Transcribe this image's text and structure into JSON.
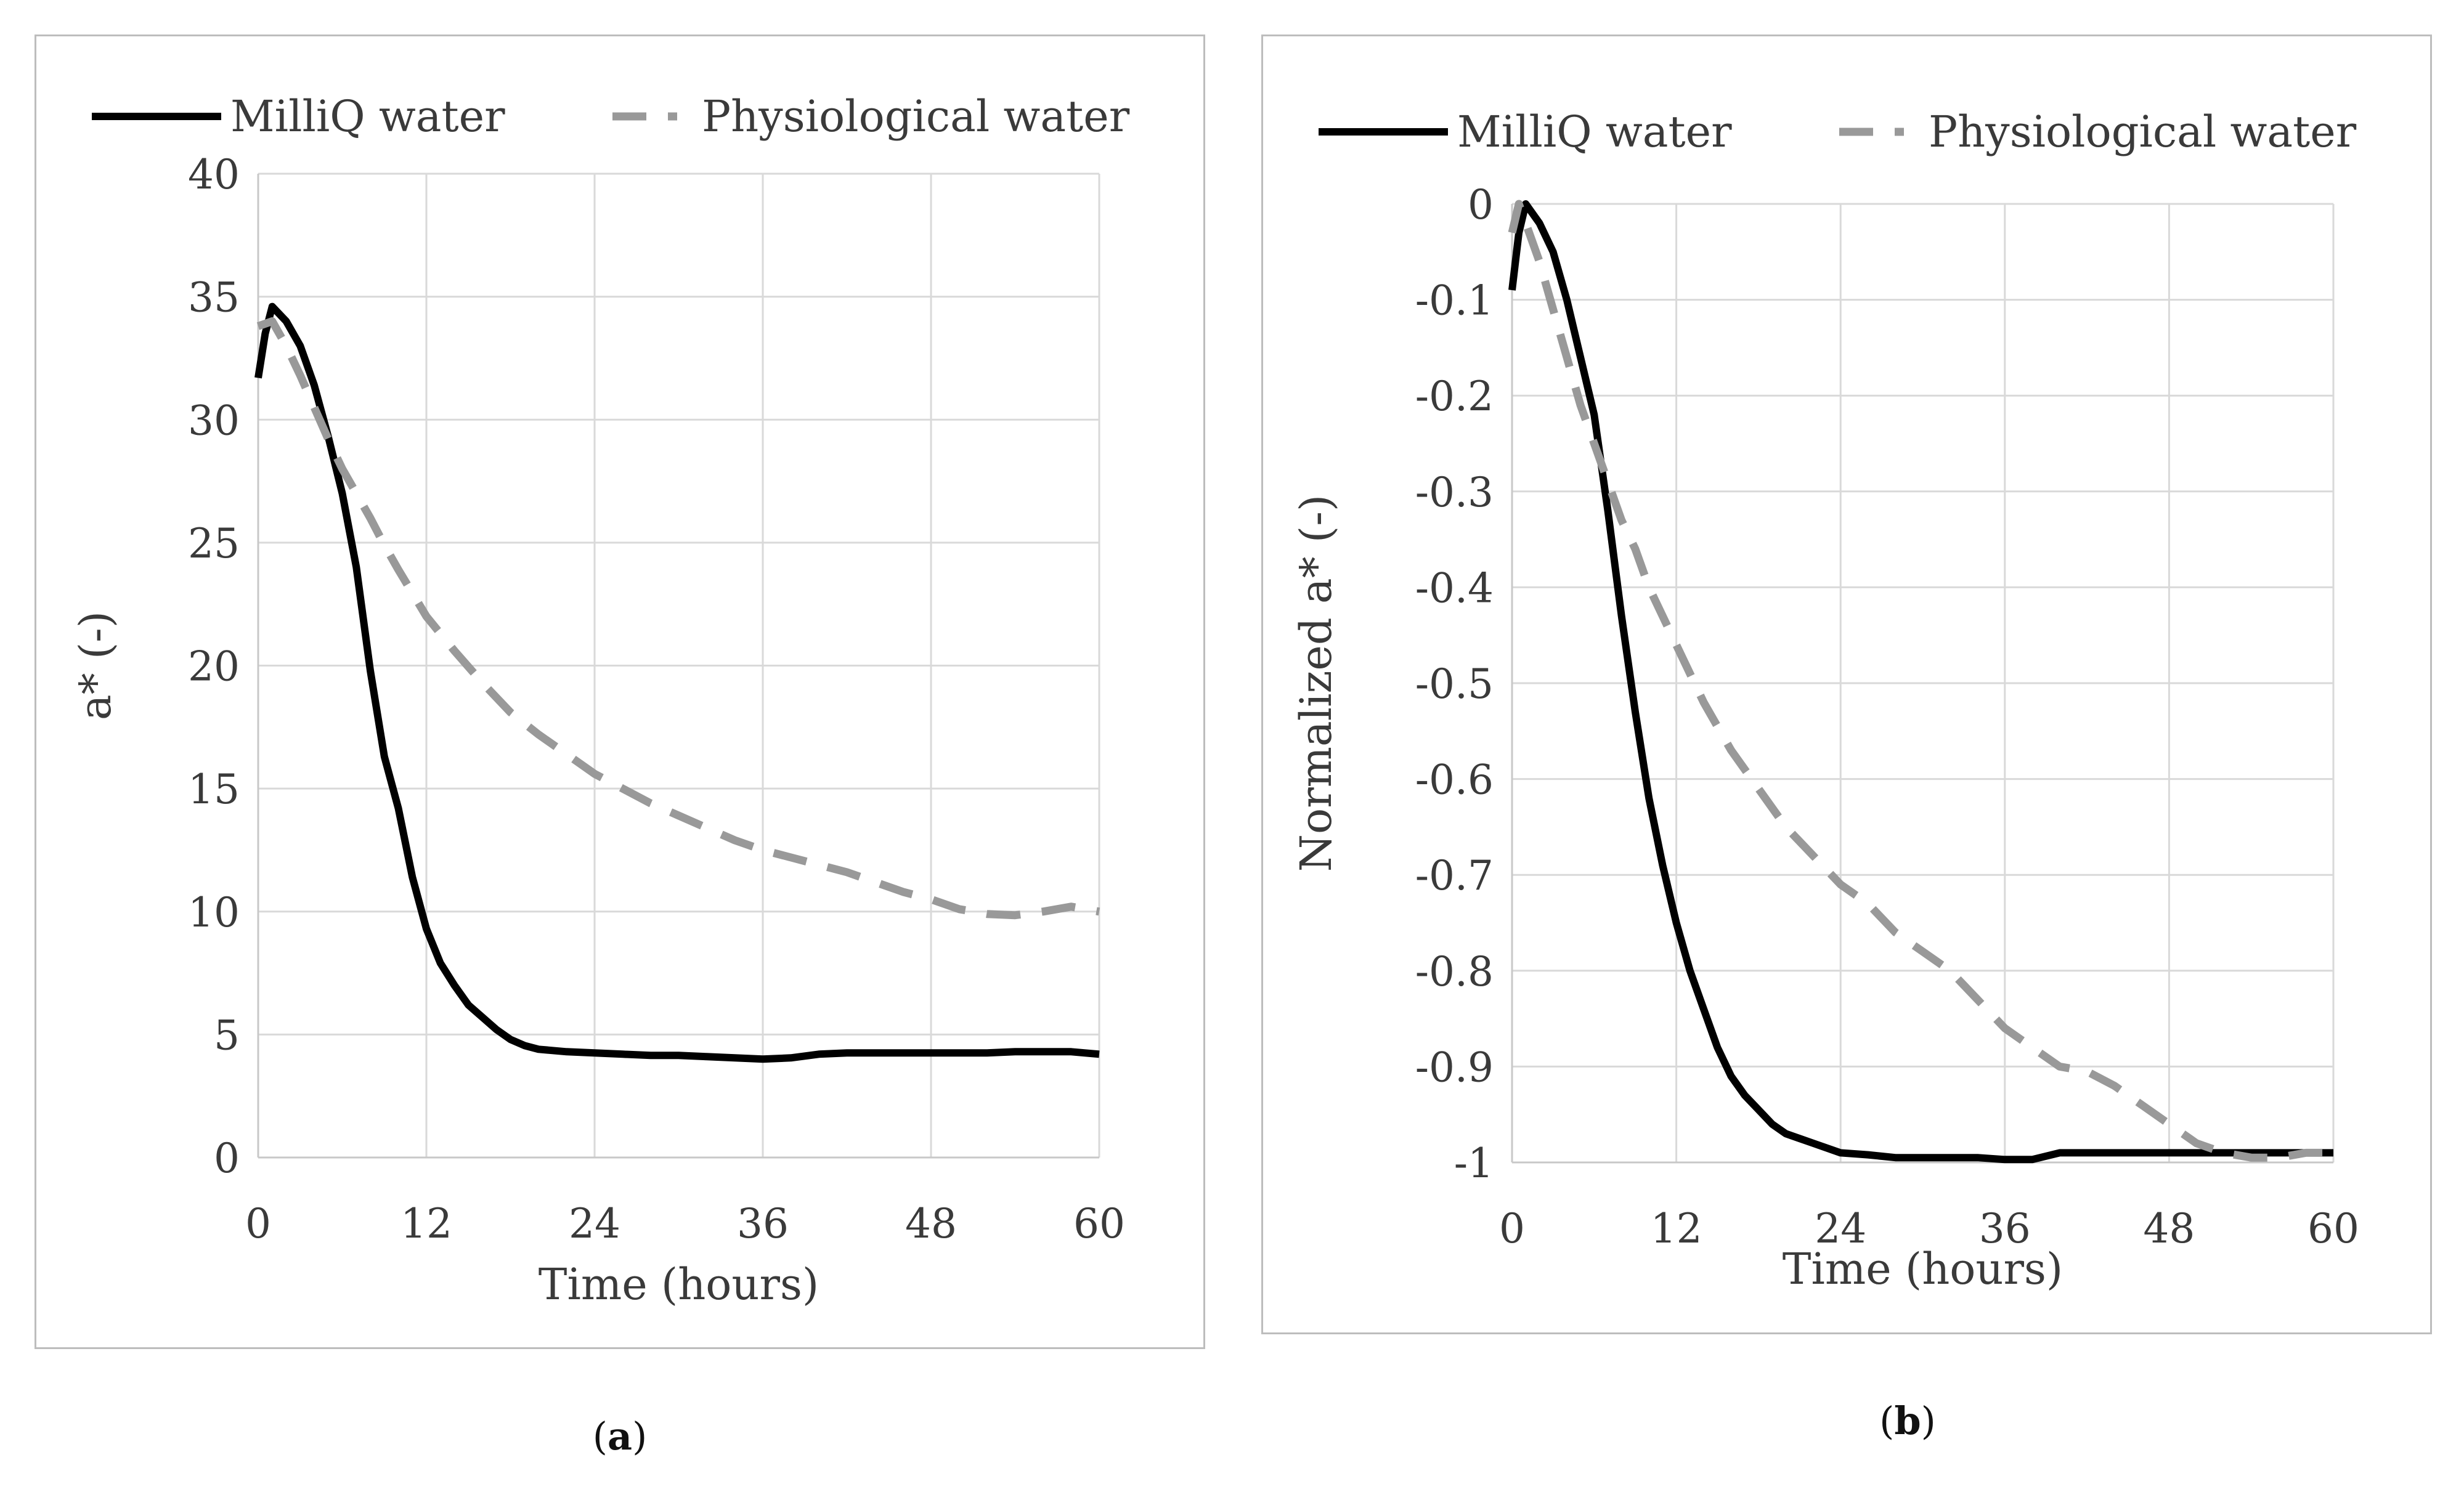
{
  "chart_data": [
    {
      "type": "line",
      "panel": "a",
      "xlabel": "Time (hours)",
      "ylabel": "a* (-)",
      "xlim": [
        0,
        60
      ],
      "ylim": [
        0,
        40
      ],
      "xticks": [
        0,
        12,
        24,
        36,
        48,
        60
      ],
      "yticks": [
        0,
        5,
        10,
        15,
        20,
        25,
        30,
        35,
        40
      ],
      "xtick_labels": [
        "0",
        "12",
        "24",
        "36",
        "48",
        "60"
      ],
      "ytick_labels": [
        "0",
        "5",
        "10",
        "15",
        "20",
        "25",
        "30",
        "35",
        "40"
      ],
      "grid": true,
      "legend_position": "top",
      "series": [
        {
          "name": "MilliQ water",
          "color": "#000000",
          "style": "solid",
          "x": [
            0,
            0.5,
            1,
            2,
            3,
            4,
            5,
            6,
            7,
            8,
            9,
            10,
            11,
            12,
            13,
            14,
            15,
            16,
            17,
            18,
            19,
            20,
            21,
            22,
            24,
            26,
            28,
            30,
            32,
            34,
            36,
            38,
            40,
            42,
            44,
            46,
            48,
            50,
            52,
            54,
            56,
            58,
            60
          ],
          "y": [
            31.7,
            33.5,
            34.6,
            34.0,
            33.0,
            31.4,
            29.3,
            27.0,
            24.0,
            19.8,
            16.3,
            14.2,
            11.4,
            9.3,
            7.9,
            7.0,
            6.2,
            5.7,
            5.2,
            4.8,
            4.55,
            4.4,
            4.35,
            4.3,
            4.25,
            4.2,
            4.15,
            4.15,
            4.1,
            4.05,
            4.0,
            4.05,
            4.2,
            4.25,
            4.25,
            4.25,
            4.25,
            4.25,
            4.25,
            4.3,
            4.3,
            4.3,
            4.2
          ]
        },
        {
          "name": "Physiological water",
          "color": "#999999",
          "style": "dashed",
          "x": [
            0,
            1,
            2,
            3,
            4,
            5,
            6,
            7,
            8,
            9,
            10,
            12,
            14,
            16,
            18,
            20,
            22,
            24,
            26,
            28,
            30,
            32,
            34,
            36,
            38,
            40,
            42,
            44,
            46,
            48,
            50,
            52,
            54,
            56,
            58,
            60
          ],
          "y": [
            33.8,
            34.0,
            33.0,
            31.8,
            30.5,
            29.2,
            28.0,
            27.0,
            26.0,
            24.9,
            23.9,
            22.0,
            20.6,
            19.3,
            18.1,
            17.2,
            16.4,
            15.6,
            15.0,
            14.4,
            13.9,
            13.4,
            12.9,
            12.5,
            12.2,
            11.9,
            11.6,
            11.2,
            10.8,
            10.5,
            10.1,
            9.9,
            9.85,
            10.0,
            10.2,
            10.0
          ]
        }
      ]
    },
    {
      "type": "line",
      "panel": "b",
      "xlabel": "Time (hours)",
      "ylabel": "Normalized a* (-)",
      "xlim": [
        0,
        60
      ],
      "ylim": [
        -1,
        0
      ],
      "xticks": [
        0,
        12,
        24,
        36,
        48,
        60
      ],
      "yticks": [
        -1,
        -0.9,
        -0.8,
        -0.7,
        -0.6,
        -0.5,
        -0.4,
        -0.3,
        -0.2,
        -0.1,
        0
      ],
      "xtick_labels": [
        "0",
        "12",
        "24",
        "36",
        "48",
        "60"
      ],
      "ytick_labels": [
        "-1",
        "-0.9",
        "-0.8",
        "-0.7",
        "-0.6",
        "-0.5",
        "-0.4",
        "-0.3",
        "-0.2",
        "-0.1",
        "0"
      ],
      "grid": true,
      "legend_position": "top",
      "series": [
        {
          "name": "MilliQ water",
          "color": "#000000",
          "style": "solid",
          "x": [
            0,
            0.5,
            1,
            2,
            3,
            4,
            5,
            6,
            7,
            8,
            9,
            10,
            11,
            12,
            13,
            14,
            15,
            16,
            17,
            18,
            19,
            20,
            22,
            24,
            26,
            28,
            30,
            32,
            34,
            36,
            38,
            40,
            42,
            44,
            46,
            48,
            50,
            52,
            54,
            56,
            58,
            60
          ],
          "y": [
            -0.09,
            -0.03,
            0.0,
            -0.02,
            -0.05,
            -0.1,
            -0.16,
            -0.22,
            -0.32,
            -0.43,
            -0.53,
            -0.62,
            -0.69,
            -0.75,
            -0.8,
            -0.84,
            -0.88,
            -0.91,
            -0.93,
            -0.945,
            -0.96,
            -0.97,
            -0.98,
            -0.99,
            -0.992,
            -0.995,
            -0.995,
            -0.995,
            -0.995,
            -0.997,
            -0.997,
            -0.99,
            -0.99,
            -0.99,
            -0.99,
            -0.99,
            -0.99,
            -0.99,
            -0.99,
            -0.99,
            -0.99,
            -0.99
          ]
        },
        {
          "name": "Physiological water",
          "color": "#999999",
          "style": "dashed",
          "x": [
            0,
            0.5,
            1,
            2,
            3,
            4,
            5,
            6,
            7,
            8,
            9,
            10,
            12,
            14,
            16,
            18,
            20,
            22,
            24,
            26,
            28,
            30,
            32,
            34,
            36,
            38,
            40,
            42,
            44,
            46,
            48,
            50,
            52,
            54,
            56,
            58,
            60
          ],
          "y": [
            -0.03,
            0.0,
            -0.02,
            -0.06,
            -0.11,
            -0.16,
            -0.21,
            -0.25,
            -0.29,
            -0.33,
            -0.36,
            -0.4,
            -0.46,
            -0.52,
            -0.57,
            -0.61,
            -0.65,
            -0.68,
            -0.71,
            -0.73,
            -0.76,
            -0.78,
            -0.8,
            -0.83,
            -0.86,
            -0.88,
            -0.9,
            -0.905,
            -0.92,
            -0.94,
            -0.96,
            -0.98,
            -0.99,
            -0.995,
            -0.995,
            -0.99,
            -0.99
          ]
        }
      ]
    }
  ],
  "captions": {
    "a": {
      "open": "(",
      "letter": "a",
      "close": ")"
    },
    "b": {
      "open": "(",
      "letter": "b",
      "close": ")"
    }
  }
}
